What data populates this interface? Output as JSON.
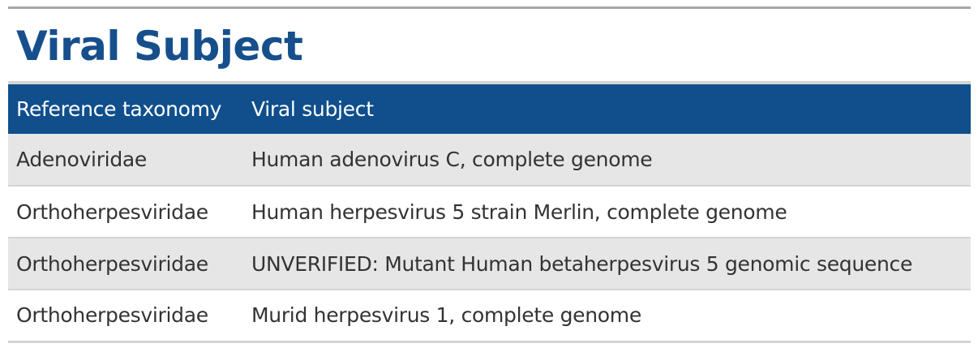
{
  "page": {
    "title": "Viral Subject"
  },
  "table": {
    "columns": [
      "Reference taxonomy",
      "Viral subject"
    ],
    "rows": [
      {
        "taxonomy": "Adenoviridae",
        "subject": "Human adenovirus C, complete genome"
      },
      {
        "taxonomy": "Orthoherpesviridae",
        "subject": "Human herpesvirus 5 strain Merlin, complete genome"
      },
      {
        "taxonomy": "Orthoherpesviridae",
        "subject": "UNVERIFIED: Mutant Human betaherpesvirus 5 genomic sequence"
      },
      {
        "taxonomy": "Orthoherpesviridae",
        "subject": "Murid herpesvirus 1, complete genome"
      }
    ]
  },
  "colors": {
    "title": "#164f8c",
    "header_bg": "#104f8c",
    "header_text": "#ffffff",
    "row_alt_bg": "#e6e6e6",
    "rule": "#d4d4d4"
  }
}
